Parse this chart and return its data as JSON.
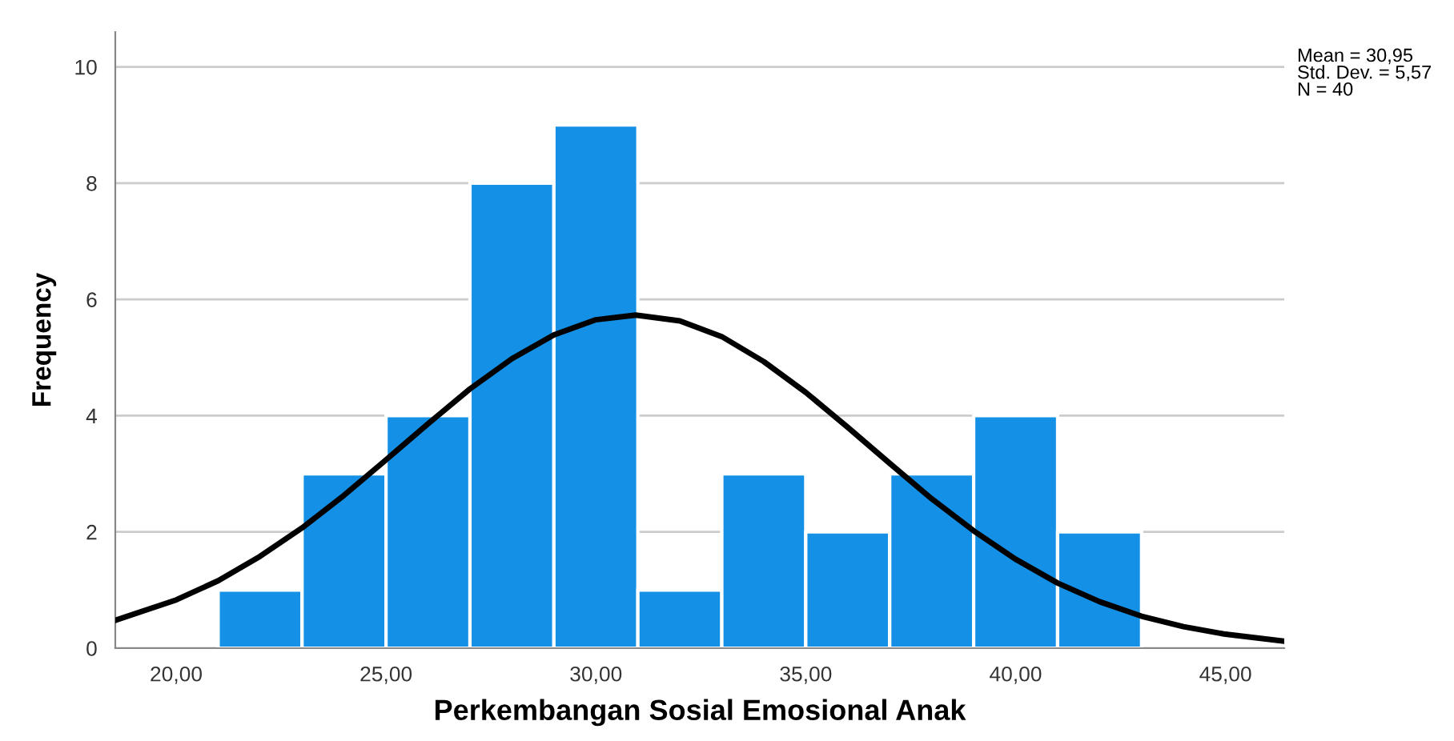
{
  "chart_data": {
    "type": "histogram",
    "xlabel": "Perkembangan Sosial Emosional Anak",
    "ylabel": "Frequency",
    "annotations": [
      "Mean = 30,95\nStd. Dev. = 5,57\nN = 40"
    ],
    "series": [
      {
        "color": "#1491e6",
        "bins": [
          21,
          23,
          25,
          27,
          29,
          31,
          33,
          35,
          37,
          39,
          41,
          43
        ],
        "values": [
          1,
          3,
          4,
          8,
          9,
          1,
          3,
          2,
          3,
          4,
          2
        ]
      },
      {
        "type": "line",
        "color": "#000000",
        "x": [
          18.55,
          20,
          21,
          22,
          23,
          24,
          25,
          26,
          27,
          28,
          29,
          30,
          30.95,
          32,
          33,
          34,
          35,
          36,
          37,
          38,
          39,
          40,
          41,
          42,
          43,
          44,
          45,
          46.4
        ],
        "values": [
          0.48,
          0.83,
          1.16,
          1.58,
          2.07,
          2.63,
          3.24,
          3.86,
          4.46,
          4.98,
          5.39,
          5.65,
          5.73,
          5.63,
          5.36,
          4.93,
          4.4,
          3.8,
          3.18,
          2.57,
          2.02,
          1.53,
          1.12,
          0.8,
          0.55,
          0.37,
          0.24,
          0.12
        ]
      }
    ],
    "xlim": [
      18.55,
      46.4
    ],
    "ylim": [
      0,
      10.6
    ],
    "xticks": [
      {
        "value": 20,
        "label": "20,00"
      },
      {
        "value": 25,
        "label": "25,00"
      },
      {
        "value": 30,
        "label": "30,00"
      },
      {
        "value": 35,
        "label": "35,00"
      },
      {
        "value": 40,
        "label": "40,00"
      },
      {
        "value": 45,
        "label": "45,00"
      }
    ],
    "yticks": [
      0,
      2,
      4,
      6,
      8,
      10
    ],
    "grid": "y"
  }
}
